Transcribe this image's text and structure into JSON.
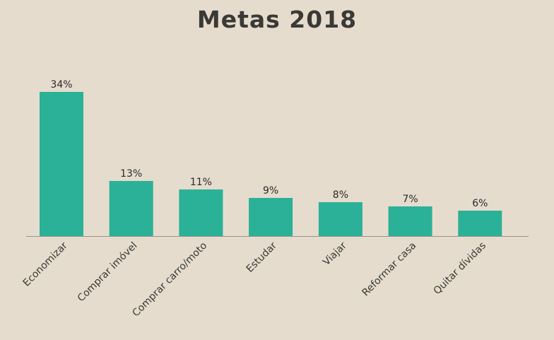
{
  "chart_data": {
    "type": "bar",
    "title": "Metas 2018",
    "categories": [
      "Economizar",
      "Comprar imóvel",
      "Comprar carro/moto",
      "Estudar",
      "Viajar",
      "Reformar casa",
      "Quitar dívidas"
    ],
    "values": [
      34,
      13,
      11,
      9,
      8,
      7,
      6
    ],
    "value_labels": [
      "34%",
      "13%",
      "11%",
      "9%",
      "8%",
      "7%",
      "6%"
    ],
    "xlabel": "",
    "ylabel": "",
    "ylim": [
      0,
      34
    ],
    "grid": false,
    "legend": "none",
    "colors": {
      "bar": "#2bb197",
      "background": "#e5dccd",
      "axis": "#9a958d",
      "title": "#3a3935"
    }
  }
}
